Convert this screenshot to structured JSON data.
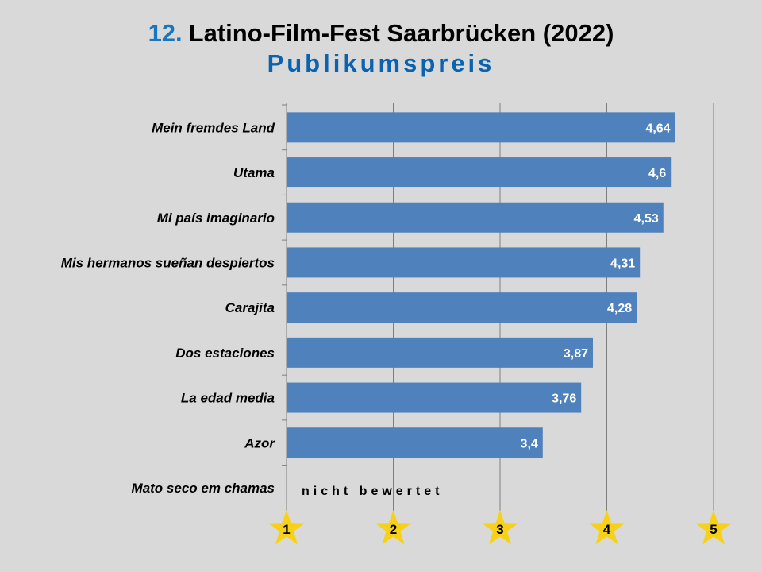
{
  "title": {
    "number": "12.",
    "text": "Latino-Film-Fest Saarbrücken (2022)"
  },
  "subtitle": "Publikumspreis",
  "not_rated_label": "nicht bewertet",
  "colors": {
    "bar": "#4f81bd",
    "star": "#f7d117",
    "grid": "#7f7f7f",
    "title_accent": "#1a75bc"
  },
  "chart_data": {
    "type": "bar",
    "orientation": "horizontal",
    "categories": [
      "Mein fremdes Land",
      "Utama",
      "Mi país imaginario",
      "Mis hermanos sueñan despiertos",
      "Carajita",
      "Dos estaciones",
      "La edad media",
      "Azor",
      "Mato seco em chamas"
    ],
    "values": [
      4.64,
      4.6,
      4.53,
      4.31,
      4.28,
      3.87,
      3.76,
      3.4,
      null
    ],
    "value_labels": [
      "4,64",
      "4,6",
      "4,53",
      "4,31",
      "4,28",
      "3,87",
      "3,76",
      "3,4",
      ""
    ],
    "xlim": [
      1,
      5
    ],
    "xticks": [
      1,
      2,
      3,
      4,
      5
    ],
    "tick_labels": [
      "1",
      "2",
      "3",
      "4",
      "5"
    ],
    "tick_marker": "star",
    "grid": true
  }
}
